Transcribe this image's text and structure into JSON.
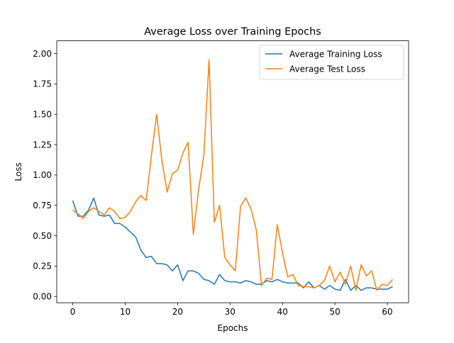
{
  "chart_data": {
    "type": "line",
    "title": "Average Loss over Training Epochs",
    "xlabel": "Epochs",
    "ylabel": "Loss",
    "xlim": [
      -3.05,
      64.05
    ],
    "ylim": [
      -0.0523,
      2.1048
    ],
    "xticks": [
      0,
      10,
      20,
      30,
      40,
      50,
      60
    ],
    "xtick_labels": [
      "0",
      "10",
      "20",
      "30",
      "40",
      "50",
      "60"
    ],
    "yticks": [
      0,
      0.25,
      0.5,
      0.75,
      1.0,
      1.25,
      1.5,
      1.75,
      2.0
    ],
    "ytick_labels": [
      "0.00",
      "0.25",
      "0.50",
      "0.75",
      "1.00",
      "1.25",
      "1.50",
      "1.75",
      "2.00"
    ],
    "grid": false,
    "legend_position": "upper-right",
    "x": [
      0,
      1,
      2,
      3,
      4,
      5,
      6,
      7,
      8,
      9,
      10,
      11,
      12,
      13,
      14,
      15,
      16,
      17,
      18,
      19,
      20,
      21,
      22,
      23,
      24,
      25,
      26,
      27,
      28,
      29,
      30,
      31,
      32,
      33,
      34,
      35,
      36,
      37,
      38,
      39,
      40,
      41,
      42,
      43,
      44,
      45,
      46,
      47,
      48,
      49,
      50,
      51,
      52,
      53,
      54,
      55,
      56,
      57,
      58,
      59,
      60,
      61
    ],
    "series": [
      {
        "name": "Average Training Loss",
        "color": "#1f77b4",
        "values": [
          0.79,
          0.66,
          0.66,
          0.71,
          0.81,
          0.67,
          0.66,
          0.67,
          0.6,
          0.6,
          0.57,
          0.53,
          0.49,
          0.38,
          0.32,
          0.33,
          0.27,
          0.27,
          0.26,
          0.21,
          0.26,
          0.13,
          0.21,
          0.21,
          0.19,
          0.14,
          0.13,
          0.1,
          0.18,
          0.13,
          0.12,
          0.12,
          0.11,
          0.13,
          0.12,
          0.1,
          0.1,
          0.13,
          0.12,
          0.14,
          0.12,
          0.11,
          0.11,
          0.11,
          0.07,
          0.12,
          0.07,
          0.09,
          0.06,
          0.09,
          0.06,
          0.05,
          0.14,
          0.05,
          0.09,
          0.05,
          0.07,
          0.07,
          0.06,
          0.06,
          0.06,
          0.08
        ]
      },
      {
        "name": "Average Test Loss",
        "color": "#ff7f0e",
        "values": [
          0.71,
          0.68,
          0.64,
          0.7,
          0.73,
          0.7,
          0.67,
          0.73,
          0.7,
          0.64,
          0.65,
          0.7,
          0.78,
          0.83,
          0.79,
          1.16,
          1.5,
          1.12,
          0.86,
          1.01,
          1.04,
          1.18,
          1.27,
          0.51,
          0.88,
          1.16,
          1.95,
          0.61,
          0.75,
          0.32,
          0.26,
          0.21,
          0.74,
          0.81,
          0.72,
          0.55,
          0.09,
          0.15,
          0.14,
          0.59,
          0.36,
          0.16,
          0.18,
          0.09,
          0.08,
          0.08,
          0.07,
          0.09,
          0.13,
          0.25,
          0.12,
          0.2,
          0.1,
          0.25,
          0.05,
          0.26,
          0.17,
          0.21,
          0.05,
          0.1,
          0.09,
          0.14
        ]
      }
    ]
  }
}
